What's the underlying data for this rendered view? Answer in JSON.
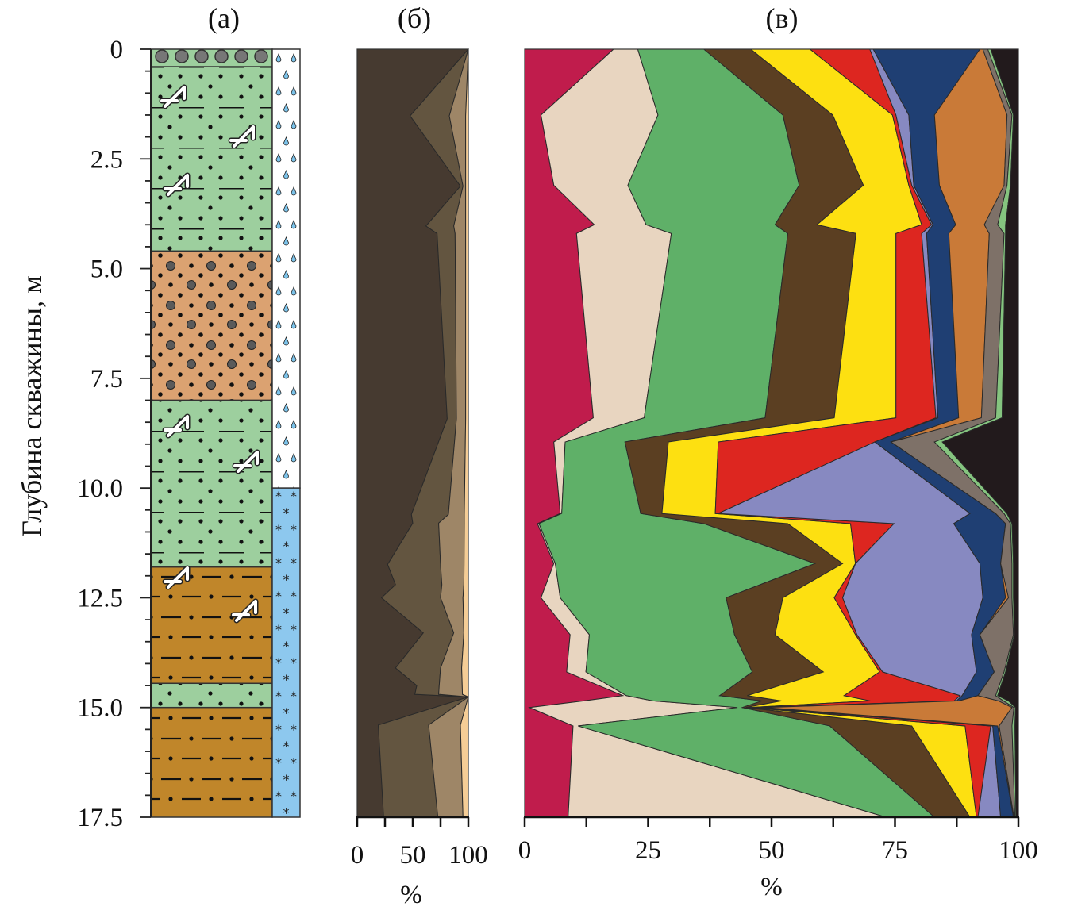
{
  "panel_labels": {
    "a": "(а)",
    "b": "(б)",
    "c": "(в)"
  },
  "chart_data": [
    {
      "id": "a",
      "type": "lithology-column",
      "ylabel": "Глубина скважины, м",
      "ylim": [
        0,
        17.5
      ],
      "yticks": [
        "0",
        "2.5",
        "5.0",
        "7.5",
        "10.0",
        "12.5",
        "15.0",
        "17.5"
      ],
      "ytick_values": [
        0,
        2.5,
        5,
        7.5,
        10,
        12.5,
        15,
        17.5
      ],
      "layers": [
        {
          "top": 0,
          "bottom": 0.4,
          "pattern": "gravel"
        },
        {
          "top": 0.4,
          "bottom": 4.6,
          "pattern": "green"
        },
        {
          "top": 4.6,
          "bottom": 8.0,
          "pattern": "orange"
        },
        {
          "top": 8.0,
          "bottom": 11.8,
          "pattern": "green"
        },
        {
          "top": 11.8,
          "bottom": 14.45,
          "pattern": "brown"
        },
        {
          "top": 14.45,
          "bottom": 15.0,
          "pattern": "green"
        },
        {
          "top": 15.0,
          "bottom": 17.5,
          "pattern": "brown"
        }
      ],
      "water": [
        {
          "top": 0,
          "bottom": 10,
          "pattern": "drops"
        },
        {
          "top": 10,
          "bottom": 17.5,
          "pattern": "stars"
        }
      ]
    },
    {
      "id": "b",
      "type": "area",
      "stacked": true,
      "xlabel": "%",
      "xlim": [
        0,
        100
      ],
      "xticks": [
        "0",
        "50",
        "100"
      ],
      "xtick_values": [
        0,
        50,
        100
      ],
      "xtick_marks": [
        0,
        25,
        50,
        75,
        100
      ],
      "depths": [
        0,
        1.52,
        3.12,
        4.03,
        4.2,
        8.42,
        10.6,
        10.8,
        11.74,
        12.2,
        12.5,
        13.3,
        14.1,
        14.5,
        14.7,
        14.76,
        15.4,
        17.5
      ],
      "series": [
        {
          "color": "#463a30",
          "cumulative_upper": [
            100,
            47.6,
            92.9,
            61.9,
            71.9,
            81.0,
            48.8,
            50,
            27.4,
            34.5,
            21.9,
            59.5,
            34.5,
            53.6,
            51.9,
            100,
            19.0,
            23.8
          ]
        },
        {
          "color": "#635540",
          "cumulative_upper": [
            100,
            82.9,
            95.2,
            86.9,
            88.1,
            89.3,
            82.1,
            73.3,
            75.0,
            76.2,
            75.0,
            86.9,
            75.0,
            73.8,
            73.3,
            100,
            64.3,
            72.6
          ]
        },
        {
          "color": "#9e8667",
          "cumulative_upper": [
            100,
            97.6,
            97.6,
            97.6,
            97.6,
            97.6,
            96.4,
            96.4,
            96.2,
            96,
            95.2,
            96,
            94.0,
            94.5,
            94.7,
            100,
            92.9,
            95.2
          ]
        },
        {
          "color": "#f5cd96",
          "cumulative_upper": [
            100,
            100,
            100,
            100,
            100,
            100,
            100,
            100,
            100,
            100,
            100,
            100,
            100,
            100,
            100,
            100,
            100,
            100
          ]
        }
      ]
    },
    {
      "id": "c",
      "type": "area",
      "stacked": true,
      "xlabel": "%",
      "xlim": [
        0,
        100
      ],
      "xticks": [
        "0",
        "25",
        "50",
        "75",
        "100"
      ],
      "xtick_values": [
        0,
        25,
        50,
        75,
        100
      ],
      "xtick_marks": [
        0,
        12.5,
        25,
        37.5,
        50,
        62.5,
        75,
        87.5,
        100
      ],
      "depths": [
        0,
        1.5,
        3.1,
        4.0,
        4.2,
        8.4,
        8.95,
        10.58,
        10.81,
        11.72,
        12.5,
        13.34,
        14.19,
        14.73,
        14.85,
        15.0,
        15.42,
        17.5
      ],
      "series": [
        {
          "color": "#c01c4c",
          "cumulative_upper": [
            18.0,
            3.3,
            5.9,
            14.1,
            10.5,
            13.9,
            5.9,
            7.2,
            2.6,
            5.9,
            3.3,
            9.2,
            8.5,
            19.9,
            12,
            1.0,
            9.8,
            8.8
          ]
        },
        {
          "color": "#e8d5c0",
          "cumulative_upper": [
            22.9,
            27.0,
            20.9,
            24.6,
            29.7,
            24.2,
            8.2,
            7.5,
            2.9,
            6.2,
            7.2,
            13.1,
            12.4,
            20.6,
            26,
            43.1,
            10.8,
            73.2
          ]
        },
        {
          "color": "#5fb068",
          "cumulative_upper": [
            36.3,
            52.3,
            55.6,
            50.7,
            53.3,
            48.7,
            20.3,
            23.5,
            36.3,
            58.8,
            40.8,
            42.5,
            46.1,
            39.5,
            48,
            44.1,
            61.8,
            83.0
          ]
        },
        {
          "color": "#5b3f22",
          "cumulative_upper": [
            45.8,
            62.4,
            68.6,
            59.2,
            67.1,
            62.7,
            29.1,
            27.8,
            53.3,
            64.4,
            52.3,
            50.7,
            60.5,
            45.1,
            52,
            44.8,
            78.4,
            90.2
          ]
        },
        {
          "color": "#fde011",
          "cumulative_upper": [
            57.8,
            74.5,
            77.8,
            80.4,
            75.2,
            75.2,
            39.2,
            38.6,
            66.0,
            67.0,
            62.7,
            67.0,
            71.9,
            64.7,
            70,
            45.5,
            89.2,
            91.5
          ]
        },
        {
          "color": "#dd2620",
          "cumulative_upper": [
            69.9,
            75.2,
            78.4,
            82.4,
            80.4,
            83.3,
            70.9,
            39.2,
            74.8,
            67.0,
            64.4,
            67.3,
            72.5,
            88.2,
            87,
            46.2,
            94.4,
            91.8
          ]
        },
        {
          "color": "#8789c1",
          "cumulative_upper": [
            70.6,
            77.8,
            78.8,
            82.7,
            81.4,
            83.7,
            70.9,
            90.2,
            86.9,
            92.2,
            92.8,
            90.5,
            91.5,
            88.6,
            87.5,
            47.0,
            94.8,
            96.4
          ]
        },
        {
          "color": "#1f3f73",
          "cumulative_upper": [
            92.2,
            83.0,
            84.0,
            87.3,
            85.9,
            87.9,
            74.2,
            95.4,
            97.4,
            96.4,
            97.4,
            92.2,
            95.1,
            91.8,
            88,
            48.7,
            95.8,
            99.0
          ]
        },
        {
          "color": "#c97a38",
          "cumulative_upper": [
            92.8,
            97.7,
            97.1,
            93.1,
            94.1,
            92.5,
            74.2,
            95.4,
            97.4,
            96.4,
            98.0,
            92.2,
            95.1,
            91.8,
            96,
            98.7,
            96.1,
            99.1
          ]
        },
        {
          "color": "#7e7168",
          "cumulative_upper": [
            93.8,
            98.7,
            97.7,
            95.8,
            97.1,
            95.4,
            83.0,
            97.1,
            98.4,
            98.7,
            98.7,
            99.0,
            97.1,
            95.4,
            97,
            99.1,
            98.7,
            99.3
          ]
        },
        {
          "color": "#85c47f",
          "cumulative_upper": [
            94.4,
            99.0,
            98.4,
            97.4,
            97.4,
            96.7,
            84.6,
            97.7,
            98.7,
            99.0,
            99.0,
            99.2,
            97.4,
            95.8,
            98,
            99.4,
            99.3,
            99.5
          ]
        },
        {
          "color": "#221a1c",
          "cumulative_upper": [
            100,
            100,
            100,
            100,
            100,
            100,
            100,
            100,
            100,
            100,
            100,
            100,
            100,
            100,
            100,
            100,
            100,
            100
          ]
        }
      ]
    }
  ]
}
